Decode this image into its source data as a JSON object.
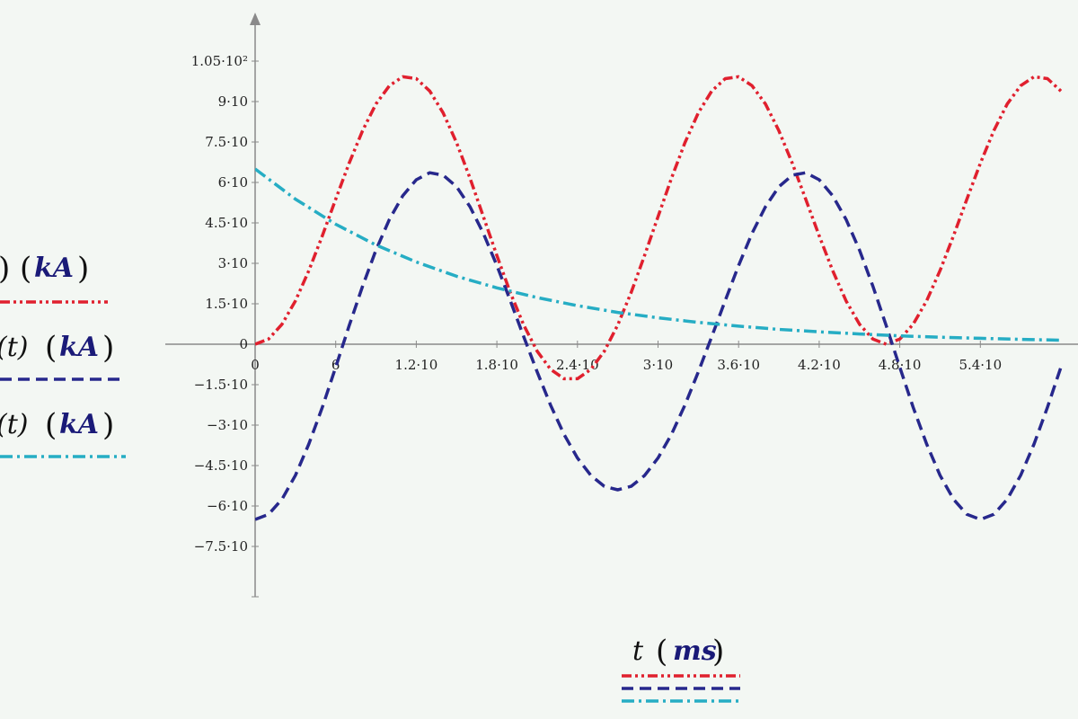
{
  "chart_data": {
    "type": "line",
    "xlabel": {
      "var": "t",
      "unit": "ms"
    },
    "xlim": [
      0,
      60
    ],
    "ylim": [
      -75,
      105
    ],
    "x_ticks": [
      {
        "value": 0,
        "label": "0"
      },
      {
        "value": 6,
        "label": "6"
      },
      {
        "value": 12,
        "label": "1.2·10"
      },
      {
        "value": 18,
        "label": "1.8·10"
      },
      {
        "value": 24,
        "label": "2.4·10"
      },
      {
        "value": 30,
        "label": "3·10"
      },
      {
        "value": 36,
        "label": "3.6·10"
      },
      {
        "value": 42,
        "label": "4.2·10"
      },
      {
        "value": 48,
        "label": "4.8·10"
      },
      {
        "value": 54,
        "label": "5.4·10"
      }
    ],
    "y_ticks": [
      {
        "value": 105,
        "label": "1.05·10²"
      },
      {
        "value": 90,
        "label": "9·10"
      },
      {
        "value": 75,
        "label": "7.5·10"
      },
      {
        "value": 60,
        "label": "6·10"
      },
      {
        "value": 45,
        "label": "4.5·10"
      },
      {
        "value": 30,
        "label": "3·10"
      },
      {
        "value": 15,
        "label": "1.5·10"
      },
      {
        "value": 0,
        "label": "0"
      },
      {
        "value": -15,
        "label": "−1.5·10"
      },
      {
        "value": -30,
        "label": "−3·10"
      },
      {
        "value": -45,
        "label": "−4.5·10"
      },
      {
        "value": -60,
        "label": "−6·10"
      },
      {
        "value": -75,
        "label": "−7.5·10"
      }
    ],
    "series": [
      {
        "legend_text": ")",
        "unit": "kA",
        "color": "#e0202e",
        "style": "dash-dot-dot",
        "x": [
          0,
          1,
          2,
          3,
          4,
          5,
          6,
          7,
          8,
          9,
          10,
          11,
          12,
          13,
          14,
          15,
          16,
          17,
          18,
          19,
          20,
          21,
          22,
          23,
          24,
          25,
          26,
          27,
          28,
          29,
          30,
          31,
          32,
          33,
          34,
          35,
          36,
          37,
          38,
          39,
          40,
          41,
          42,
          43,
          44,
          45,
          46,
          47,
          48,
          49,
          50,
          51,
          52,
          53,
          54,
          55,
          56,
          57,
          58,
          59,
          60
        ],
        "values": [
          0,
          1.9,
          7.4,
          16.1,
          27.3,
          40.2,
          53.8,
          67.1,
          79.2,
          89.1,
          95.9,
          99.2,
          98.5,
          93.9,
          85.8,
          74.7,
          61.6,
          47.3,
          32.9,
          19.2,
          7.1,
          -2.6,
          -9.3,
          -12.8,
          -12.8,
          -9.3,
          -2.6,
          7.1,
          19.2,
          32.9,
          47.3,
          61.6,
          74.7,
          85.8,
          93.9,
          98.5,
          99.2,
          95.9,
          89.1,
          79.2,
          67.1,
          53.8,
          40.2,
          27.3,
          16.1,
          7.4,
          1.9,
          0,
          1.9,
          7.4,
          16.1,
          27.3,
          40.2,
          53.8,
          67.1,
          79.2,
          89.1,
          95.9,
          99.2,
          98.5,
          93.9
        ]
      },
      {
        "legend_text": "(t)",
        "unit": "kA",
        "color": "#27288c",
        "style": "dash",
        "x": [
          0,
          1,
          2,
          3,
          4,
          5,
          6,
          7,
          8,
          9,
          10,
          11,
          12,
          13,
          14,
          15,
          16,
          17,
          18,
          19,
          20,
          21,
          22,
          23,
          24,
          25,
          26,
          27,
          28,
          29,
          30,
          31,
          32,
          33,
          34,
          35,
          36,
          37,
          38,
          39,
          40,
          41,
          42,
          43,
          44,
          45,
          46,
          47,
          48,
          49,
          50,
          51,
          52,
          53,
          54,
          55,
          56,
          57,
          58,
          59,
          60
        ],
        "values": [
          -65,
          -63.1,
          -57.5,
          -48.6,
          -37.0,
          -23.4,
          -8.5,
          6.8,
          21.5,
          34.9,
          46.3,
          55.1,
          61.0,
          63.6,
          62.7,
          58.4,
          51.0,
          41.1,
          29.2,
          16.2,
          2.8,
          -10.3,
          -22.6,
          -33.4,
          -42.2,
          -48.7,
          -52.7,
          -54.0,
          -52.7,
          -48.7,
          -42.2,
          -33.4,
          -22.6,
          -10.3,
          2.8,
          16.2,
          29.2,
          41.1,
          51.0,
          58.4,
          62.7,
          63.6,
          61.0,
          55.1,
          46.3,
          34.9,
          21.5,
          6.8,
          -8.5,
          -23.4,
          -37.0,
          -48.6,
          -57.5,
          -63.1,
          -65,
          -63.1,
          -57.5,
          -48.6,
          -37.0,
          -23.4,
          -8.5
        ]
      },
      {
        "legend_text": "(t)",
        "unit": "kA",
        "color": "#26adc4",
        "style": "dash-dot",
        "x": [
          0,
          3,
          6,
          9,
          12,
          15,
          18,
          21,
          24,
          27,
          30,
          33,
          36,
          39,
          42,
          45,
          48,
          51,
          54,
          57,
          60
        ],
        "values": [
          65,
          53.8,
          44.5,
          36.8,
          30.5,
          25.2,
          20.9,
          17.3,
          14.3,
          11.8,
          9.8,
          8.1,
          6.7,
          5.5,
          4.6,
          3.8,
          3.1,
          2.6,
          2.2,
          1.8,
          1.5
        ]
      }
    ]
  }
}
